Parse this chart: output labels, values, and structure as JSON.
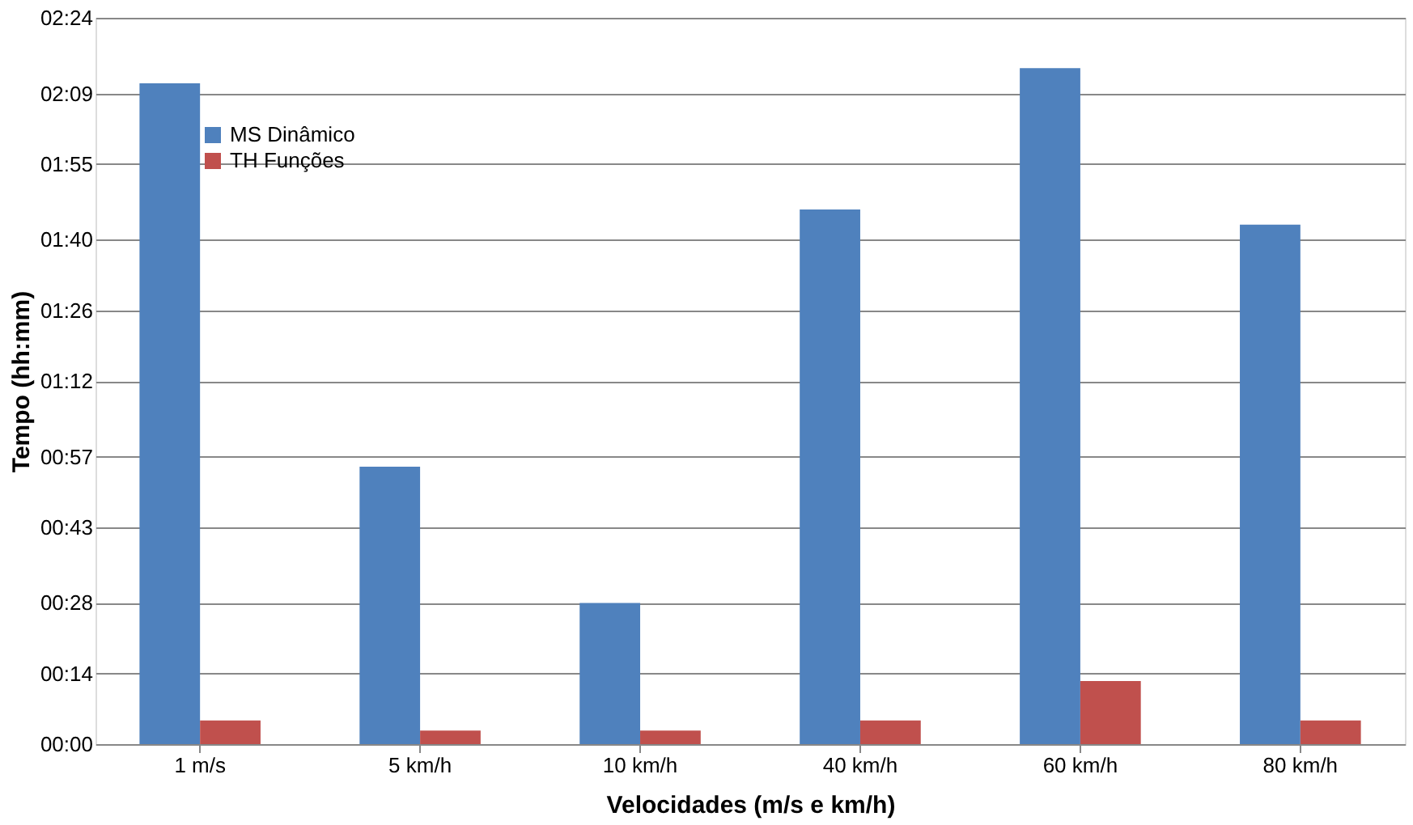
{
  "chart_data": {
    "type": "bar",
    "xlabel": "Velocidades (m/s e km/h)",
    "ylabel": "Tempo (hh:mm)",
    "categories": [
      "1 m/s",
      "5 km/h",
      "10 km/h",
      "40 km/h",
      "60 km/h",
      "80 km/h"
    ],
    "series": [
      {
        "name": "MS Dinâmico",
        "color": "#4f81bd",
        "values": [
          131,
          55,
          28,
          106,
          134,
          103
        ]
      },
      {
        "name": "TH Funções",
        "color": "#c0504d",
        "values": [
          4.7,
          2.7,
          2.7,
          4.7,
          12.5,
          4.7
        ]
      }
    ],
    "ylim": [
      0,
      144
    ],
    "yticks": [
      {
        "value": 0,
        "label": "00:00"
      },
      {
        "value": 14,
        "label": "00:14"
      },
      {
        "value": 28,
        "label": "00:28"
      },
      {
        "value": 43,
        "label": "00:43"
      },
      {
        "value": 57,
        "label": "00:57"
      },
      {
        "value": 72,
        "label": "01:12"
      },
      {
        "value": 86,
        "label": "01:26"
      },
      {
        "value": 100,
        "label": "01:40"
      },
      {
        "value": 115,
        "label": "01:55"
      },
      {
        "value": 129,
        "label": "02:09"
      },
      {
        "value": 144,
        "label": "02:24"
      }
    ],
    "grid": "y",
    "legend": "top left"
  }
}
